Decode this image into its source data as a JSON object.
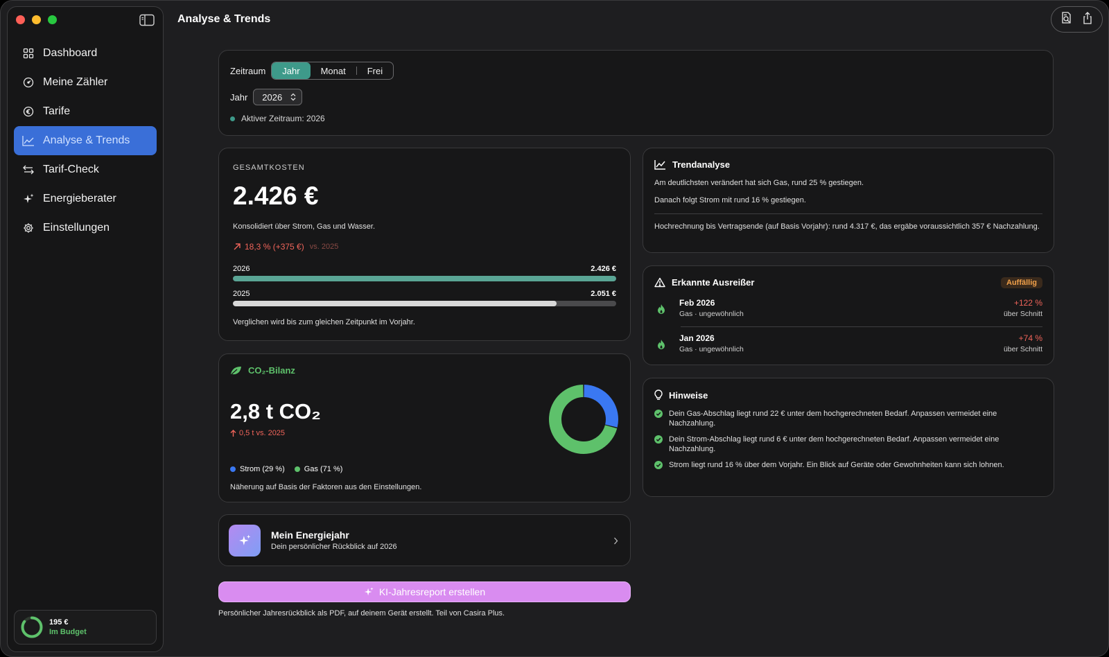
{
  "window": {
    "title": "Analyse & Trends"
  },
  "sidebar": {
    "items": [
      {
        "label": "Dashboard",
        "icon": "grid-icon"
      },
      {
        "label": "Meine Zähler",
        "icon": "gauge-icon"
      },
      {
        "label": "Tarife",
        "icon": "euro-icon"
      },
      {
        "label": "Analyse & Trends",
        "icon": "chart-line-icon",
        "active": true
      },
      {
        "label": "Tarif-Check",
        "icon": "arrows-swap-icon"
      },
      {
        "label": "Energieberater",
        "icon": "sparkles-icon"
      },
      {
        "label": "Einstellungen",
        "icon": "gear-icon"
      }
    ],
    "budget": {
      "amount": "195 €",
      "status": "Im Budget",
      "progress": 0.85
    }
  },
  "period": {
    "label": "Zeitraum",
    "options": [
      "Jahr",
      "Monat",
      "Frei"
    ],
    "selected": "Jahr",
    "year_label": "Jahr",
    "year_value": "2026",
    "active_text": "Aktiver Zeitraum: 2026"
  },
  "costs": {
    "heading": "GESAMTKOSTEN",
    "total": "2.426 €",
    "subtitle": "Konsolidiert über Strom, Gas und Wasser.",
    "change": "18,3 % (+375 €)",
    "vs": "vs. 2025",
    "rows": [
      {
        "year": "2026",
        "value": "2.426 €",
        "fraction": 1.0,
        "color": "#5aa595"
      },
      {
        "year": "2025",
        "value": "2.051 €",
        "fraction": 0.845,
        "color": "#d8d8d8"
      }
    ],
    "note": "Verglichen wird bis zum gleichen Zeitpunkt im Vorjahr."
  },
  "co2": {
    "heading": "CO₂-Bilanz",
    "value": "2,8 t CO₂",
    "change": "0,5 t vs. 2025",
    "legend": [
      {
        "label": "Strom (29 %)",
        "color": "#3a78f2",
        "share": 29
      },
      {
        "label": "Gas (71 %)",
        "color": "#5ec16b",
        "share": 71
      }
    ],
    "note": "Näherung auf Basis der Faktoren aus den Einstellungen."
  },
  "energy_year": {
    "title": "Mein Energiejahr",
    "subtitle": "Dein persönlicher Rückblick auf 2026"
  },
  "ki": {
    "button": "KI-Jahresreport erstellen",
    "note": "Persönlicher Jahresrückblick als PDF, auf deinem Gerät erstellt. Teil von Casira Plus."
  },
  "trend": {
    "heading": "Trendanalyse",
    "line1": "Am deutlichsten verändert hat sich Gas, rund 25 % gestiegen.",
    "line2": "Danach folgt Strom mit rund 16 % gestiegen.",
    "forecast": "Hochrechnung bis Vertragsende (auf Basis Vorjahr): rund 4.317 €, das ergäbe voraussichtlich 357 € Nachzahlung."
  },
  "outliers": {
    "heading": "Erkannte Ausreißer",
    "badge": "Auffällig",
    "items": [
      {
        "month": "Feb 2026",
        "desc": "Gas · ungewöhnlich",
        "delta": "+122 %",
        "rel": "über Schnitt"
      },
      {
        "month": "Jan 2026",
        "desc": "Gas · ungewöhnlich",
        "delta": "+74 %",
        "rel": "über Schnitt"
      }
    ]
  },
  "hints": {
    "heading": "Hinweise",
    "items": [
      "Dein Gas-Abschlag liegt rund 22 € unter dem hochgerechneten Bedarf. Anpassen vermeidet eine Nachzahlung.",
      "Dein Strom-Abschlag liegt rund 6 € unter dem hochgerechneten Bedarf. Anpassen vermeidet eine Nachzahlung.",
      "Strom liegt rund 16 % über dem Vorjahr. Ein Blick auf Geräte oder Gewohnheiten kann sich lohnen."
    ]
  }
}
